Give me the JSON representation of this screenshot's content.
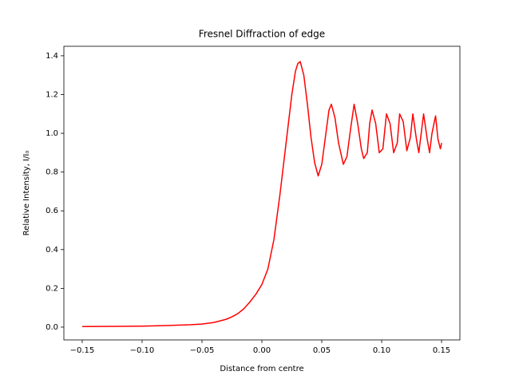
{
  "chart_data": {
    "type": "line",
    "title": "Fresnel Diffraction of edge",
    "x_label": "Distance from centre",
    "y_label": "Relative Intensity, I/I₀",
    "x": [
      -0.15,
      -0.12,
      -0.1,
      -0.08,
      -0.06,
      -0.05,
      -0.04,
      -0.03,
      -0.025,
      -0.02,
      -0.015,
      -0.01,
      -0.005,
      0,
      0.005,
      0.01,
      0.015,
      0.02,
      0.025,
      0.028,
      0.03,
      0.032,
      0.035,
      0.038,
      0.041,
      0.044,
      0.047,
      0.05,
      0.053,
      0.056,
      0.058,
      0.061,
      0.064,
      0.068,
      0.071,
      0.074,
      0.077,
      0.08,
      0.083,
      0.085,
      0.088,
      0.09,
      0.092,
      0.095,
      0.098,
      0.101,
      0.104,
      0.107,
      0.11,
      0.113,
      0.115,
      0.118,
      0.121,
      0.124,
      0.126,
      0.129,
      0.131,
      0.133,
      0.135,
      0.138,
      0.14,
      0.142,
      0.145,
      0.147,
      0.149,
      0.15
    ],
    "series": [
      {
        "color": "#ff0000",
        "values": [
          0.003,
          0.004,
          0.005,
          0.008,
          0.012,
          0.016,
          0.024,
          0.04,
          0.053,
          0.07,
          0.095,
          0.13,
          0.17,
          0.22,
          0.3,
          0.45,
          0.68,
          0.94,
          1.2,
          1.32,
          1.36,
          1.37,
          1.3,
          1.15,
          0.98,
          0.85,
          0.78,
          0.84,
          0.98,
          1.12,
          1.15,
          1.08,
          0.95,
          0.84,
          0.88,
          1.02,
          1.15,
          1.05,
          0.92,
          0.87,
          0.9,
          1.05,
          1.12,
          1.05,
          0.9,
          0.92,
          1.1,
          1.05,
          0.9,
          0.95,
          1.1,
          1.06,
          0.91,
          0.98,
          1.1,
          0.97,
          0.9,
          1.0,
          1.1,
          0.97,
          0.9,
          1.0,
          1.09,
          0.97,
          0.92,
          0.95
        ]
      }
    ],
    "xlim": [
      -0.1653,
      0.1653
    ],
    "ylim": [
      -0.066,
      1.449
    ],
    "xticks": [
      {
        "value": -0.15,
        "label": "−0.15"
      },
      {
        "value": -0.1,
        "label": "−0.10"
      },
      {
        "value": -0.05,
        "label": "−0.05"
      },
      {
        "value": 0,
        "label": "0.00"
      },
      {
        "value": 0.05,
        "label": "0.05"
      },
      {
        "value": 0.1,
        "label": "0.10"
      },
      {
        "value": 0.15,
        "label": "0.15"
      }
    ],
    "yticks": [
      {
        "value": 0,
        "label": "0.0"
      },
      0.2,
      0.4,
      0.6,
      0.8,
      {
        "value": 1,
        "label": "1.0"
      },
      1.2,
      1.4
    ]
  }
}
